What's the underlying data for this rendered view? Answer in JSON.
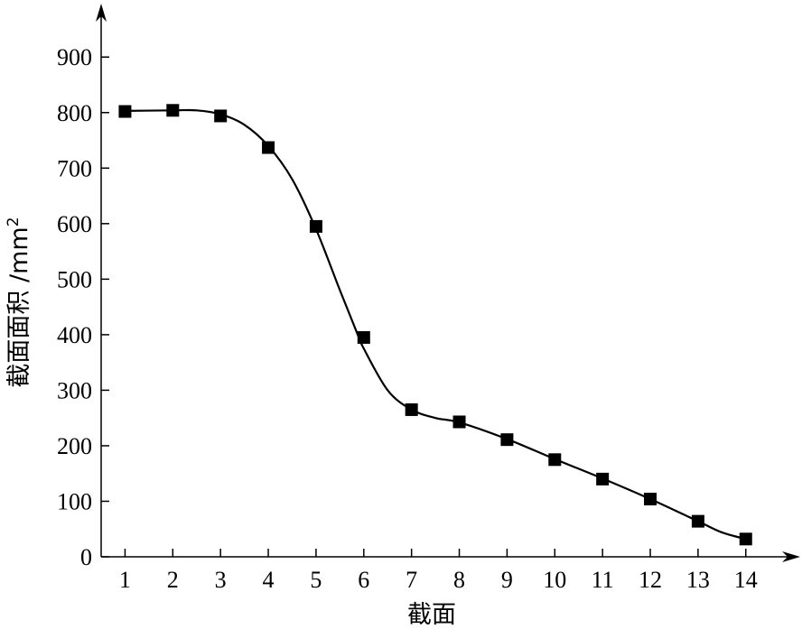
{
  "chart_data": {
    "type": "line",
    "title": "",
    "xlabel": "截面",
    "ylabel": "截面面积 /mm",
    "ylabel_superscript": "2",
    "x": [
      1,
      2,
      3,
      4,
      5,
      6,
      7,
      8,
      9,
      10,
      11,
      12,
      13,
      14
    ],
    "x_tick_labels": [
      "1",
      "2",
      "3",
      "4",
      "5",
      "6",
      "7",
      "8",
      "9",
      "10",
      "11",
      "12",
      "13",
      "14"
    ],
    "y_ticks": [
      0,
      100,
      200,
      300,
      400,
      500,
      600,
      700,
      800,
      900
    ],
    "y_tick_labels": [
      "0",
      "100",
      "200",
      "300",
      "400",
      "500",
      "600",
      "700",
      "800",
      "900"
    ],
    "xlim": [
      0.5,
      14.95
    ],
    "ylim": [
      0,
      980
    ],
    "series": [
      {
        "values": [
          802,
          804,
          794,
          737,
          595,
          395,
          265,
          243,
          211,
          175,
          140,
          104,
          64,
          32
        ],
        "marker": "square",
        "color": "#000000"
      }
    ],
    "curve": [
      [
        1,
        803
      ],
      [
        2,
        804
      ],
      [
        2.5,
        804
      ],
      [
        3,
        797
      ],
      [
        3.5,
        778
      ],
      [
        4,
        740
      ],
      [
        4.5,
        680
      ],
      [
        5,
        590
      ],
      [
        5.5,
        480
      ],
      [
        5.85,
        405
      ],
      [
        6,
        375
      ],
      [
        6.5,
        300
      ],
      [
        7,
        265
      ],
      [
        7.5,
        250
      ],
      [
        8,
        242
      ],
      [
        9,
        212
      ],
      [
        10,
        176
      ],
      [
        11,
        141
      ],
      [
        12,
        104
      ],
      [
        13,
        64
      ],
      [
        13.5,
        44
      ],
      [
        14,
        32
      ]
    ],
    "grid": false,
    "legend": "none"
  }
}
